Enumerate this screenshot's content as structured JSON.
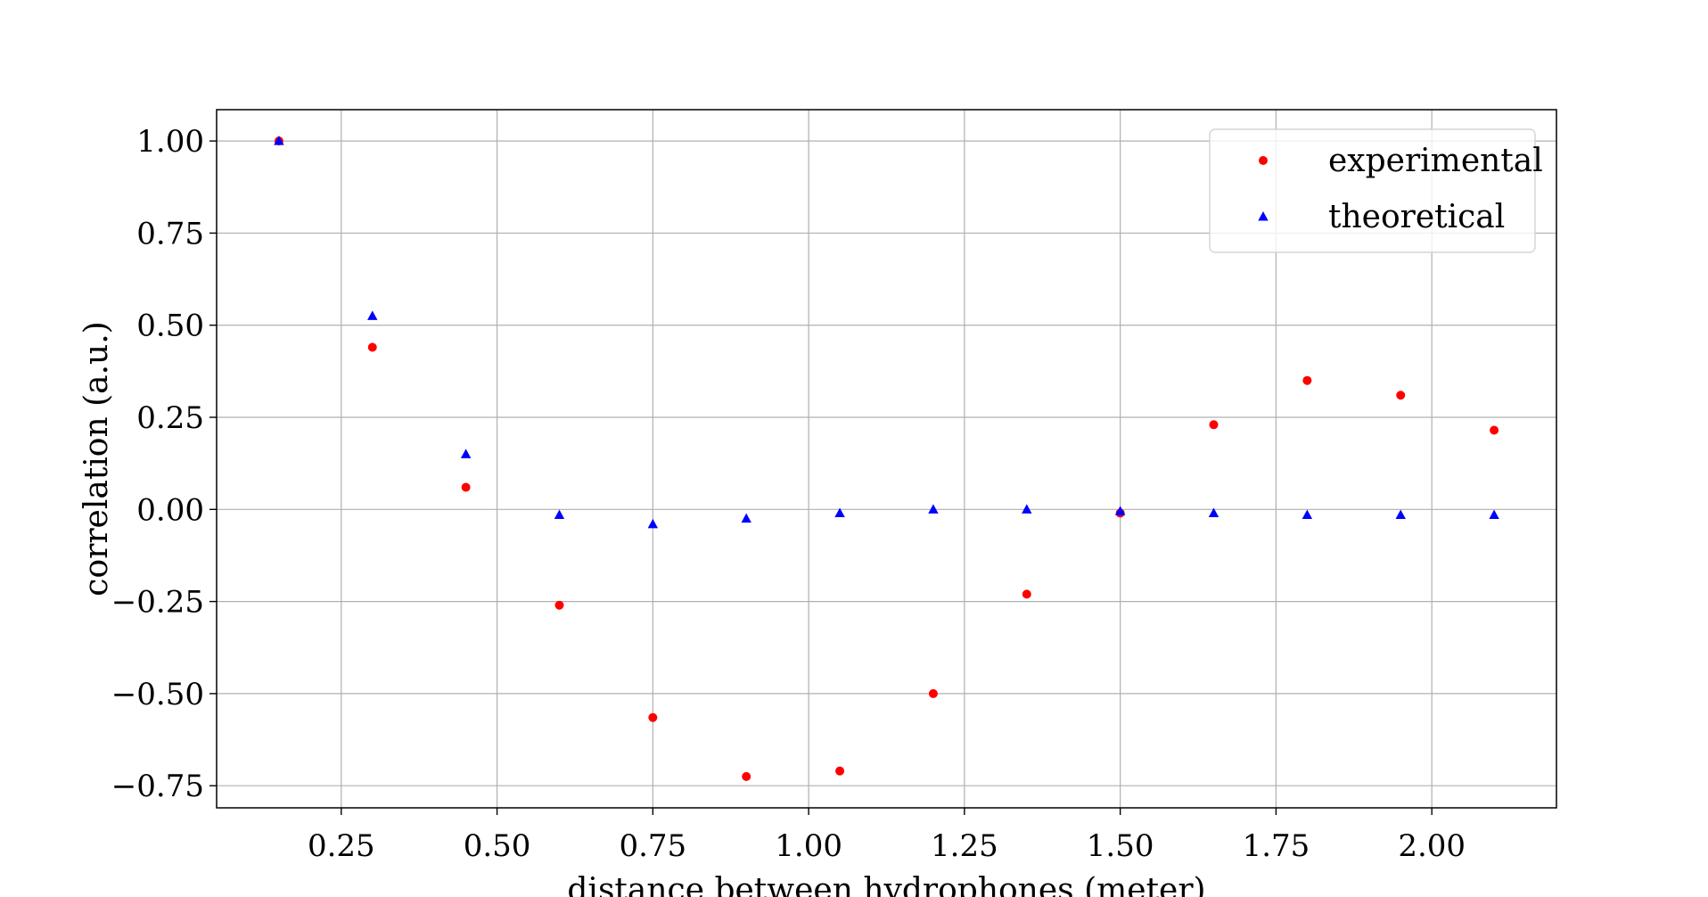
{
  "chart_data": {
    "type": "scatter",
    "xlabel": "distance between hydrophones (meter)",
    "ylabel": "correlation (a.u.)",
    "xlim": [
      0.05,
      2.2
    ],
    "ylim": [
      -0.81,
      1.085
    ],
    "xticks": [
      0.25,
      0.5,
      0.75,
      1.0,
      1.25,
      1.5,
      1.75,
      2.0
    ],
    "xtick_labels": [
      "0.25",
      "0.50",
      "0.75",
      "1.00",
      "1.25",
      "1.50",
      "1.75",
      "2.00"
    ],
    "yticks": [
      1.0,
      0.75,
      0.5,
      0.25,
      0.0,
      -0.25,
      -0.5,
      -0.75
    ],
    "ytick_labels": [
      "1.00",
      "0.75",
      "0.50",
      "0.25",
      "0.00",
      "−0.25",
      "−0.50",
      "−0.75"
    ],
    "grid": true,
    "legend_position": "top-right",
    "x": [
      0.15,
      0.3,
      0.45,
      0.6,
      0.75,
      0.9,
      1.05,
      1.2,
      1.35,
      1.5,
      1.65,
      1.8,
      1.95,
      2.1
    ],
    "series": [
      {
        "name": "experimental",
        "marker": "circle",
        "color": "#ff0000",
        "values": [
          1.0,
          0.44,
          0.06,
          -0.26,
          -0.565,
          -0.725,
          -0.71,
          -0.5,
          -0.23,
          -0.01,
          0.23,
          0.35,
          0.31,
          0.215
        ]
      },
      {
        "name": "theoretical",
        "marker": "triangle",
        "color": "#0000ff",
        "values": [
          1.0,
          0.525,
          0.15,
          -0.015,
          -0.04,
          -0.025,
          -0.01,
          0.0,
          0.0,
          -0.005,
          -0.01,
          -0.015,
          -0.015,
          -0.015
        ]
      }
    ]
  }
}
